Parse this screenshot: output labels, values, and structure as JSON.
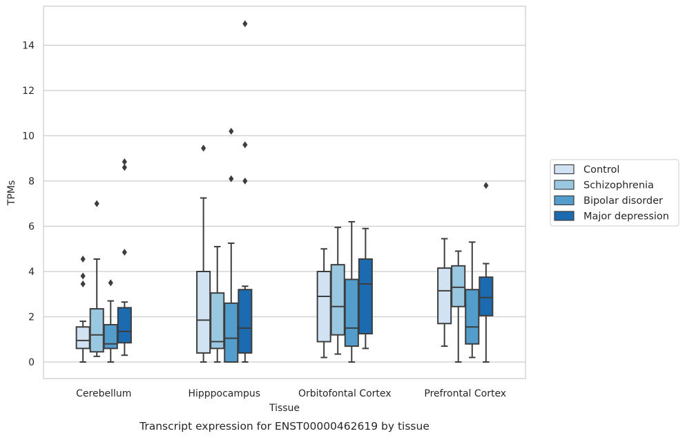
{
  "chart_data": {
    "type": "boxplot",
    "caption": "Transcript expression for ENST00000462619 by tissue",
    "xlabel": "Tissue",
    "ylabel": "TPMs",
    "ylim": [
      -0.7,
      15.7
    ],
    "yticks": [
      0,
      2,
      4,
      6,
      8,
      10,
      12,
      14
    ],
    "grid": "horizontal",
    "legend_placement": "right",
    "categories": [
      "Cerebellum",
      "Hipppocampus",
      "Orbitofontal Cortex",
      "Prefrontal Cortex"
    ],
    "series": [
      {
        "name": "Control",
        "color": "#d1e2f2",
        "boxes": [
          {
            "whislo": 0.0,
            "q1": 0.6,
            "med": 0.95,
            "q3": 1.55,
            "whishi": 1.8,
            "fliers": [
              3.45,
              3.8,
              4.55
            ]
          },
          {
            "whislo": 0.0,
            "q1": 0.4,
            "med": 1.85,
            "q3": 4.0,
            "whishi": 7.25,
            "fliers": [
              9.45
            ]
          },
          {
            "whislo": 0.2,
            "q1": 0.9,
            "med": 2.9,
            "q3": 4.0,
            "whishi": 5.0,
            "fliers": []
          },
          {
            "whislo": 0.7,
            "q1": 1.7,
            "med": 3.15,
            "q3": 4.15,
            "whishi": 5.45,
            "fliers": []
          }
        ]
      },
      {
        "name": "Schizophrenia",
        "color": "#9ac8e0",
        "boxes": [
          {
            "whislo": 0.25,
            "q1": 0.45,
            "med": 1.2,
            "q3": 2.35,
            "whishi": 4.55,
            "fliers": [
              7.0
            ]
          },
          {
            "whislo": 0.0,
            "q1": 0.6,
            "med": 0.9,
            "q3": 3.05,
            "whishi": 5.1,
            "fliers": []
          },
          {
            "whislo": 0.35,
            "q1": 1.2,
            "med": 2.45,
            "q3": 4.3,
            "whishi": 5.95,
            "fliers": []
          },
          {
            "whislo": 0.0,
            "q1": 2.45,
            "med": 3.3,
            "q3": 4.25,
            "whishi": 4.9,
            "fliers": []
          }
        ]
      },
      {
        "name": "Bipolar disorder",
        "color": "#529dcc",
        "boxes": [
          {
            "whislo": 0.0,
            "q1": 0.6,
            "med": 0.8,
            "q3": 1.65,
            "whishi": 2.7,
            "fliers": [
              3.5
            ]
          },
          {
            "whislo": 0.0,
            "q1": 0.0,
            "med": 1.05,
            "q3": 2.6,
            "whishi": 5.25,
            "fliers": [
              8.1,
              10.2
            ]
          },
          {
            "whislo": 0.0,
            "q1": 0.7,
            "med": 1.5,
            "q3": 3.65,
            "whishi": 6.2,
            "fliers": []
          },
          {
            "whislo": 0.2,
            "q1": 0.8,
            "med": 1.55,
            "q3": 3.2,
            "whishi": 5.3,
            "fliers": []
          }
        ]
      },
      {
        "name": "Major depression",
        "color": "#1c6aaf",
        "boxes": [
          {
            "whislo": 0.3,
            "q1": 0.85,
            "med": 1.35,
            "q3": 2.4,
            "whishi": 2.65,
            "fliers": [
              4.85,
              8.6,
              8.85
            ]
          },
          {
            "whislo": 0.0,
            "q1": 0.4,
            "med": 1.5,
            "q3": 3.2,
            "whishi": 3.35,
            "fliers": [
              8.0,
              9.6,
              14.95
            ]
          },
          {
            "whislo": 0.6,
            "q1": 1.25,
            "med": 3.45,
            "q3": 4.55,
            "whishi": 5.9,
            "fliers": []
          },
          {
            "whislo": 0.0,
            "q1": 2.05,
            "med": 2.85,
            "q3": 3.75,
            "whishi": 4.35,
            "fliers": [
              7.8
            ]
          }
        ]
      }
    ]
  }
}
